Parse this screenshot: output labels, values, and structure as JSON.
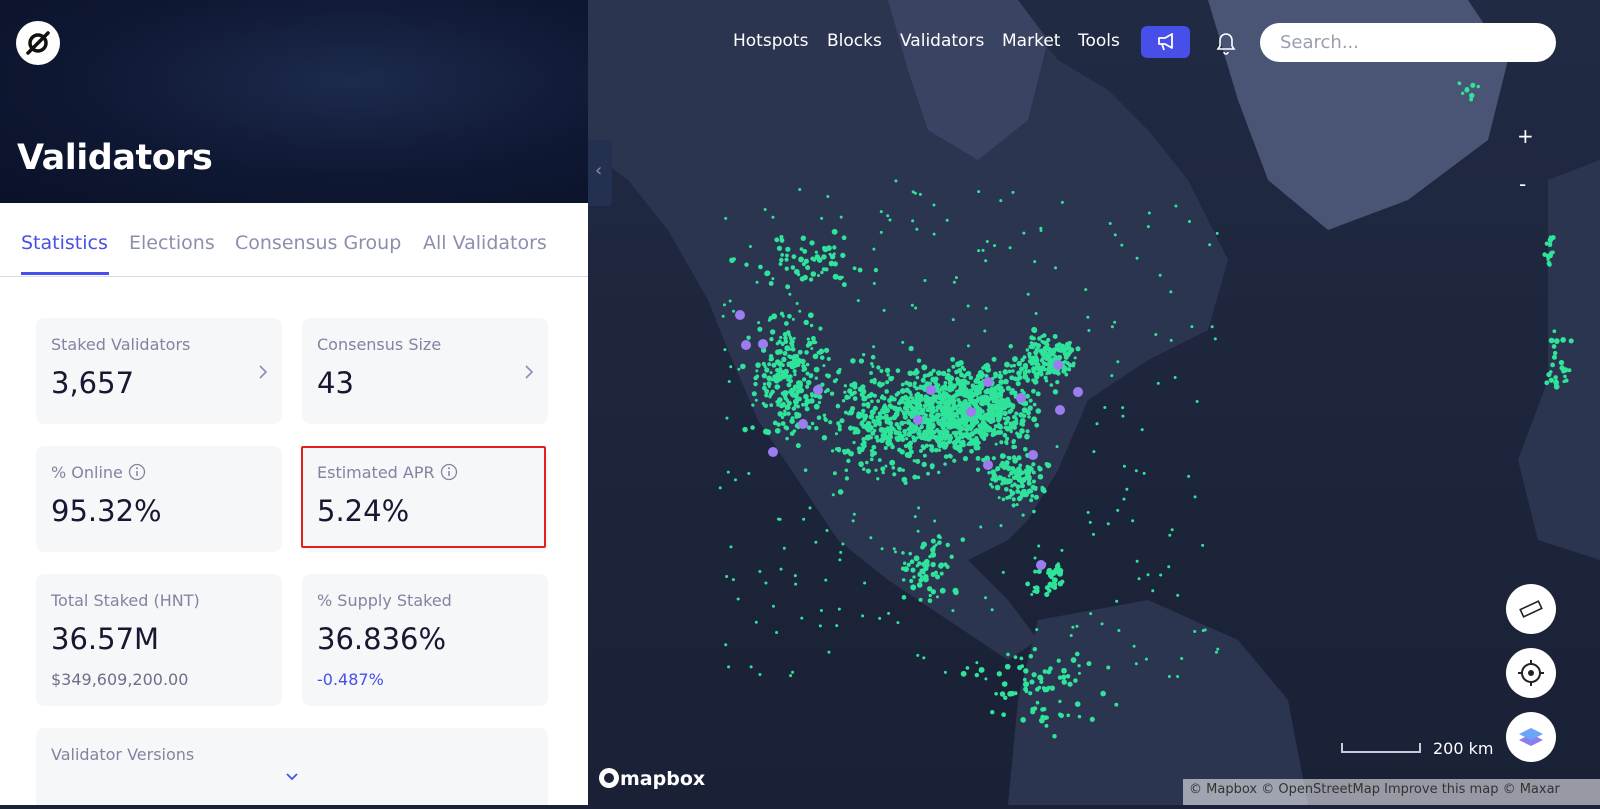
{
  "nav": {
    "links": [
      "Hotspots",
      "Blocks",
      "Validators",
      "Market",
      "Tools"
    ],
    "search_placeholder": "Search..."
  },
  "header": {
    "title": "Validators"
  },
  "tabs": [
    "Statistics",
    "Elections",
    "Consensus Group",
    "All Validators"
  ],
  "cards": [
    {
      "label": "Staked Validators",
      "value": "3,657"
    },
    {
      "label": "Consensus Size",
      "value": "43"
    },
    {
      "label": "% Online",
      "value": "95.32%"
    },
    {
      "label": "Estimated APR",
      "value": "5.24%"
    },
    {
      "label": "Total Staked (HNT)",
      "value": "36.57M",
      "sub": "$349,609,200.00"
    },
    {
      "label": "% Supply Staked",
      "value": "36.836%",
      "sub": "-0.487%"
    },
    {
      "label": "Validator Versions"
    }
  ],
  "map": {
    "zoom_in": "+",
    "zoom_out": "-",
    "collapse": "‹",
    "scale": "200 km",
    "logo": "mapbox",
    "attribution": "© Mapbox © OpenStreetMap Improve this map © Maxar"
  }
}
